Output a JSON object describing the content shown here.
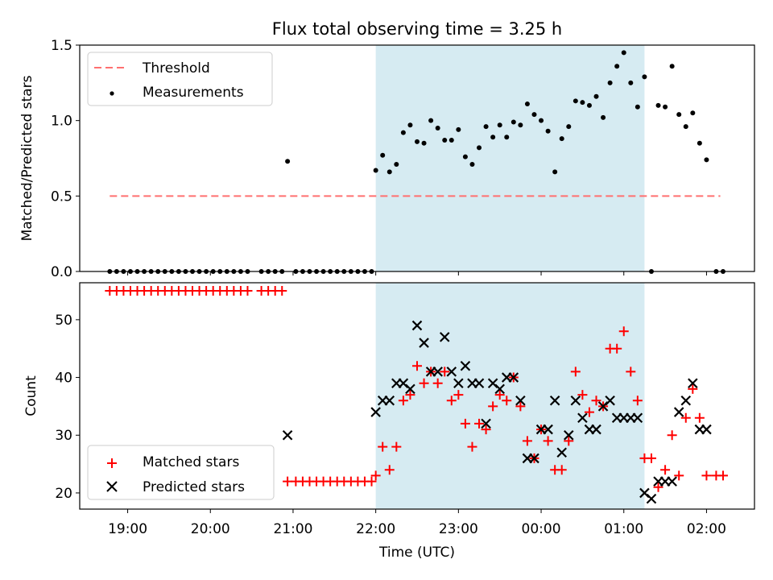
{
  "title": "Flux total observing time = 3.25 h",
  "colors": {
    "threshold": "#ff7070",
    "measurement": "#000000",
    "matched": "#ff0000",
    "predicted": "#000000",
    "span": "#add8e6"
  },
  "chart_data": [
    {
      "type": "scatter",
      "panel": "top",
      "ylabel": "Matched/Predicted stars",
      "ylim": [
        0,
        1.5
      ],
      "yticks": [
        "0.0",
        "0.5",
        "1.0",
        "1.5"
      ],
      "xlim_hours": [
        18.42,
        26.58
      ],
      "xticks": [
        "19:00",
        "20:00",
        "21:00",
        "22:00",
        "23:00",
        "00:00",
        "01:00",
        "02:00"
      ],
      "shaded_span": {
        "from": "22:00",
        "to": "01:15"
      },
      "legend_position": "upper left",
      "threshold": {
        "name": "Threshold",
        "value": 0.5,
        "from": "18:47",
        "to": "02:10"
      },
      "measurements": {
        "name": "Measurements",
        "x": [
          "18:47",
          "18:52",
          "18:57",
          "19:02",
          "19:07",
          "19:12",
          "19:17",
          "19:22",
          "19:27",
          "19:32",
          "19:37",
          "19:42",
          "19:47",
          "19:52",
          "19:57",
          "20:02",
          "20:07",
          "20:12",
          "20:17",
          "20:22",
          "20:27",
          "20:37",
          "20:42",
          "20:47",
          "20:52",
          "20:56",
          "21:02",
          "21:07",
          "21:12",
          "21:17",
          "21:22",
          "21:27",
          "21:32",
          "21:37",
          "21:42",
          "21:47",
          "21:52",
          "21:57",
          "22:00",
          "22:05",
          "22:10",
          "22:15",
          "22:20",
          "22:25",
          "22:30",
          "22:35",
          "22:40",
          "22:45",
          "22:50",
          "22:55",
          "23:00",
          "23:05",
          "23:10",
          "23:15",
          "23:20",
          "23:25",
          "23:30",
          "23:35",
          "23:40",
          "23:45",
          "23:50",
          "23:55",
          "00:00",
          "00:05",
          "00:10",
          "00:15",
          "00:20",
          "00:25",
          "00:30",
          "00:35",
          "00:40",
          "00:45",
          "00:50",
          "00:55",
          "01:00",
          "01:05",
          "01:10",
          "01:15",
          "01:20",
          "01:25",
          "01:30",
          "01:35",
          "01:40",
          "01:45",
          "01:50",
          "01:55",
          "02:00",
          "02:07",
          "02:12"
        ],
        "y": [
          0,
          0,
          0,
          0,
          0,
          0,
          0,
          0,
          0,
          0,
          0,
          0,
          0,
          0,
          0,
          0,
          0,
          0,
          0,
          0,
          0,
          0,
          0,
          0,
          0,
          0.73,
          0,
          0,
          0,
          0,
          0,
          0,
          0,
          0,
          0,
          0,
          0,
          0,
          0.67,
          0.77,
          0.66,
          0.71,
          0.92,
          0.97,
          0.86,
          0.85,
          1.0,
          0.95,
          0.87,
          0.87,
          0.94,
          0.76,
          0.71,
          0.82,
          0.96,
          0.89,
          0.97,
          0.89,
          0.99,
          0.97,
          1.11,
          1.04,
          1.0,
          0.93,
          0.66,
          0.88,
          0.96,
          1.13,
          1.12,
          1.1,
          1.16,
          1.02,
          1.25,
          1.36,
          1.45,
          1.25,
          1.09,
          1.29,
          0,
          1.1,
          1.09,
          1.36,
          1.04,
          0.96,
          1.05,
          0.85,
          0.74,
          0,
          0
        ]
      }
    },
    {
      "type": "scatter",
      "panel": "bottom",
      "xlabel": "Time (UTC)",
      "ylabel": "Count",
      "ylim": [
        17.2,
        56.4
      ],
      "yticks": [
        "20",
        "30",
        "40",
        "50"
      ],
      "xlim_hours": [
        18.42,
        26.58
      ],
      "xticks": [
        "19:00",
        "20:00",
        "21:00",
        "22:00",
        "23:00",
        "00:00",
        "01:00",
        "02:00"
      ],
      "shaded_span": {
        "from": "22:00",
        "to": "01:15"
      },
      "legend_position": "lower left",
      "series": [
        {
          "name": "Matched stars",
          "marker": "plus",
          "x": [
            "18:47",
            "18:52",
            "18:57",
            "19:02",
            "19:07",
            "19:12",
            "19:17",
            "19:22",
            "19:27",
            "19:32",
            "19:37",
            "19:42",
            "19:47",
            "19:52",
            "19:57",
            "20:02",
            "20:07",
            "20:12",
            "20:17",
            "20:22",
            "20:27",
            "20:37",
            "20:42",
            "20:47",
            "20:52",
            "20:56",
            "21:02",
            "21:07",
            "21:12",
            "21:17",
            "21:22",
            "21:27",
            "21:32",
            "21:37",
            "21:42",
            "21:47",
            "21:52",
            "21:57",
            "22:00",
            "22:05",
            "22:10",
            "22:15",
            "22:20",
            "22:25",
            "22:30",
            "22:35",
            "22:40",
            "22:45",
            "22:50",
            "22:55",
            "23:00",
            "23:05",
            "23:10",
            "23:15",
            "23:20",
            "23:25",
            "23:30",
            "23:35",
            "23:40",
            "23:45",
            "23:50",
            "23:55",
            "00:00",
            "00:05",
            "00:10",
            "00:15",
            "00:20",
            "00:25",
            "00:30",
            "00:35",
            "00:40",
            "00:45",
            "00:50",
            "00:55",
            "01:00",
            "01:05",
            "01:10",
            "01:15",
            "01:20",
            "01:25",
            "01:30",
            "01:35",
            "01:40",
            "01:45",
            "01:50",
            "01:55",
            "02:00",
            "02:07",
            "02:12"
          ],
          "y": [
            55,
            55,
            55,
            55,
            55,
            55,
            55,
            55,
            55,
            55,
            55,
            55,
            55,
            55,
            55,
            55,
            55,
            55,
            55,
            55,
            55,
            55,
            55,
            55,
            55,
            22,
            22,
            22,
            22,
            22,
            22,
            22,
            22,
            22,
            22,
            22,
            22,
            22,
            23,
            28,
            24,
            28,
            36,
            37,
            42,
            39,
            41,
            39,
            41,
            36,
            37,
            32,
            28,
            32,
            31,
            35,
            37,
            36,
            40,
            35,
            29,
            26,
            31,
            29,
            24,
            24,
            29,
            41,
            37,
            34,
            36,
            35,
            45,
            45,
            48,
            41,
            36,
            26,
            26,
            21,
            24,
            30,
            23,
            33,
            38,
            33,
            23,
            23,
            23
          ]
        },
        {
          "name": "Predicted stars",
          "marker": "x",
          "x": [
            "20:56",
            "22:00",
            "22:05",
            "22:10",
            "22:15",
            "22:20",
            "22:25",
            "22:30",
            "22:35",
            "22:40",
            "22:45",
            "22:50",
            "22:55",
            "23:00",
            "23:05",
            "23:10",
            "23:15",
            "23:20",
            "23:25",
            "23:30",
            "23:35",
            "23:40",
            "23:45",
            "23:50",
            "23:55",
            "00:00",
            "00:05",
            "00:10",
            "00:15",
            "00:20",
            "00:25",
            "00:30",
            "00:35",
            "00:40",
            "00:45",
            "00:50",
            "00:55",
            "01:00",
            "01:05",
            "01:10",
            "01:15",
            "01:20",
            "01:25",
            "01:30",
            "01:35",
            "01:40",
            "01:45",
            "01:50",
            "01:55",
            "02:00"
          ],
          "y": [
            30,
            34,
            36,
            36,
            39,
            39,
            38,
            49,
            46,
            41,
            41,
            47,
            41,
            39,
            42,
            39,
            39,
            32,
            39,
            38,
            40,
            40,
            36,
            26,
            26,
            31,
            31,
            36,
            27,
            30,
            36,
            33,
            31,
            31,
            35,
            36,
            33,
            33,
            33,
            33,
            20,
            19,
            22,
            22,
            22,
            34,
            36,
            39,
            31,
            31
          ]
        }
      ]
    }
  ]
}
